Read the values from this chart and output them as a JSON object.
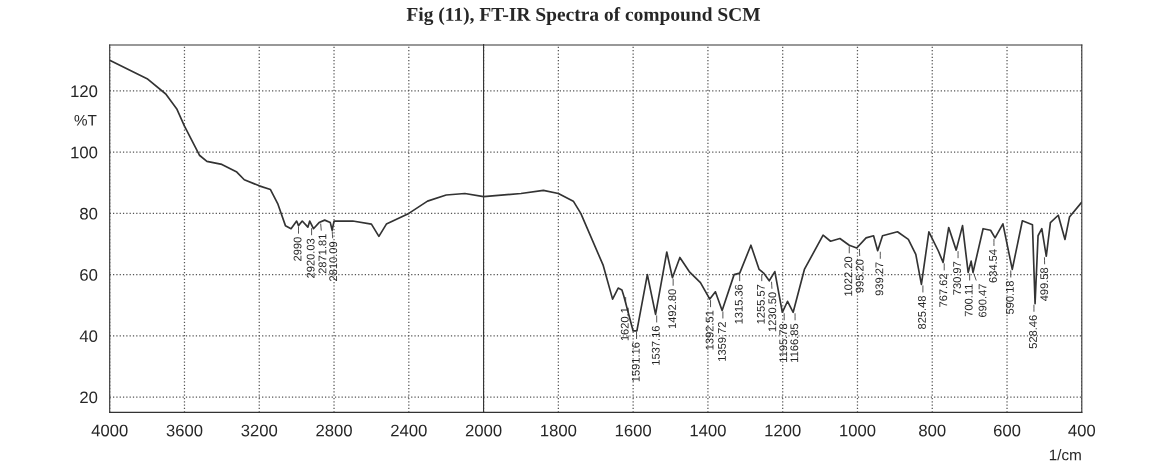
{
  "chart_data": [
    {
      "type": "line",
      "title": "Fig (11), FT-IR Spectra of compound SCM",
      "ylabel": "%T",
      "xlim": [
        4000,
        2000
      ],
      "ylim": [
        15,
        135
      ],
      "xticks": [
        4000,
        3600,
        3200,
        2800,
        2400,
        2000
      ],
      "yticks": [
        20,
        40,
        60,
        80,
        100,
        120
      ],
      "grid": true,
      "marker": "none",
      "line_style": "solid",
      "series": [
        {
          "color": "#333333",
          "x": [
            4000,
            3800,
            3700,
            3640,
            3600,
            3520,
            3480,
            3400,
            3320,
            3280,
            3200,
            3140,
            3100,
            3060,
            3030,
            3000,
            2990,
            2970,
            2940,
            2930,
            2910,
            2880,
            2850,
            2820,
            2810,
            2800,
            2700,
            2600,
            2560,
            2520,
            2400,
            2300,
            2200,
            2100,
            2000
          ],
          "values": [
            130,
            124,
            119,
            114,
            108.5,
            99,
            97,
            96,
            93.5,
            91,
            89,
            87.8,
            83,
            76,
            75,
            77.5,
            76,
            77.5,
            75.5,
            77.5,
            75,
            77,
            77.8,
            77,
            74.5,
            77.5,
            77.5,
            76.5,
            72.5,
            76.5,
            80,
            84,
            86,
            86.5,
            85.5
          ]
        }
      ],
      "annotations": [
        {
          "text": "2990",
          "x": 2990,
          "y": 76
        },
        {
          "text": "2920.03",
          "x": 2920,
          "y": 75.5
        },
        {
          "text": "2871.81",
          "x": 2872,
          "y": 77
        },
        {
          "text": "2810.09",
          "x": 2810,
          "y": 74.5
        }
      ]
    },
    {
      "type": "line",
      "xlabel": "1/cm",
      "xlim": [
        2000,
        400
      ],
      "ylim": [
        15,
        135
      ],
      "xticks": [
        {
          "value": 2000,
          "label": null
        },
        1800,
        1600,
        1400,
        1200,
        1000,
        800,
        600,
        400
      ],
      "yticks": [
        {
          "value": 20,
          "label": null
        },
        {
          "value": 40,
          "label": null
        },
        {
          "value": 60,
          "label": null
        },
        {
          "value": 80,
          "label": null
        },
        {
          "value": 100,
          "label": null
        },
        {
          "value": 120,
          "label": null
        }
      ],
      "tick_labels": "x",
      "grid": true,
      "marker": "none",
      "line_style": "solid",
      "series": [
        {
          "color": "#333333",
          "x": [
            2000,
            1900,
            1840,
            1800,
            1760,
            1740,
            1680,
            1655,
            1640,
            1630,
            1625,
            1600,
            1590,
            1562,
            1540,
            1510,
            1495,
            1475,
            1450,
            1420,
            1395,
            1380,
            1362,
            1330,
            1315,
            1285,
            1263,
            1251,
            1236,
            1221,
            1201,
            1187,
            1172,
            1142,
            1092,
            1072,
            1047,
            1022,
            1002,
            977,
            957,
            946,
            933,
            893,
            864,
            844,
            829,
            809,
            784,
            771,
            756,
            736,
            719,
            704,
            696,
            691,
            664,
            644,
            632,
            611,
            586,
            559,
            532,
            525,
            517,
            507,
            495,
            484,
            463,
            445,
            433,
            400
          ],
          "values": [
            85.5,
            86.5,
            87.5,
            86.5,
            84,
            80,
            63,
            52,
            55.6,
            55,
            53,
            41.6,
            41.6,
            60,
            47,
            67.4,
            59,
            65.6,
            61,
            57.4,
            52,
            54.4,
            48.3,
            60,
            60.5,
            69.6,
            61.7,
            60.5,
            58,
            61,
            47.7,
            51.3,
            47.7,
            61.7,
            72.9,
            70.9,
            71.8,
            69.6,
            68.7,
            72,
            72.7,
            67.8,
            72.7,
            74,
            71.5,
            66.6,
            56.8,
            74,
            67.8,
            64,
            75.4,
            68,
            76,
            60.7,
            64.4,
            60.7,
            75,
            74.5,
            72,
            76.6,
            61.7,
            77.6,
            76.3,
            50.5,
            72.7,
            75,
            66,
            77,
            79.4,
            71.5,
            78.8,
            83.7
          ]
        }
      ],
      "annotations": [
        {
          "text": "1620.1",
          "x": 1620,
          "y": 53
        },
        {
          "text": "1591.16",
          "x": 1591,
          "y": 41.6
        },
        {
          "text": "1537.16",
          "x": 1537,
          "y": 47
        },
        {
          "text": "1492.80",
          "x": 1493,
          "y": 59
        },
        {
          "text": "1392.51",
          "x": 1393,
          "y": 52
        },
        {
          "text": "1359.72",
          "x": 1360,
          "y": 48.3
        },
        {
          "text": "1315.36",
          "x": 1315,
          "y": 60.5
        },
        {
          "text": "1255.57",
          "x": 1256,
          "y": 60.5
        },
        {
          "text": "1230.50",
          "x": 1230,
          "y": 58
        },
        {
          "text": "1195.78",
          "x": 1196,
          "y": 47.7
        },
        {
          "text": "1166.85",
          "x": 1167,
          "y": 47.7
        },
        {
          "text": "1022.20",
          "x": 1022,
          "y": 69.6
        },
        {
          "text": "995.20",
          "x": 995,
          "y": 68.7
        },
        {
          "text": "939.27",
          "x": 939,
          "y": 67.8
        },
        {
          "text": "825.48",
          "x": 825,
          "y": 56.8
        },
        {
          "text": "767.62",
          "x": 768,
          "y": 64
        },
        {
          "text": "730.97",
          "x": 731,
          "y": 68
        },
        {
          "text": "700.11",
          "x": 700,
          "y": 60.7
        },
        {
          "text": "690.47",
          "x": 690,
          "y": 60.7
        },
        {
          "text": "634.54",
          "x": 635,
          "y": 72
        },
        {
          "text": "590.18",
          "x": 590,
          "y": 61.7
        },
        {
          "text": "528.46",
          "x": 528,
          "y": 50.5
        },
        {
          "text": "499.58",
          "x": 500,
          "y": 66
        }
      ]
    }
  ]
}
